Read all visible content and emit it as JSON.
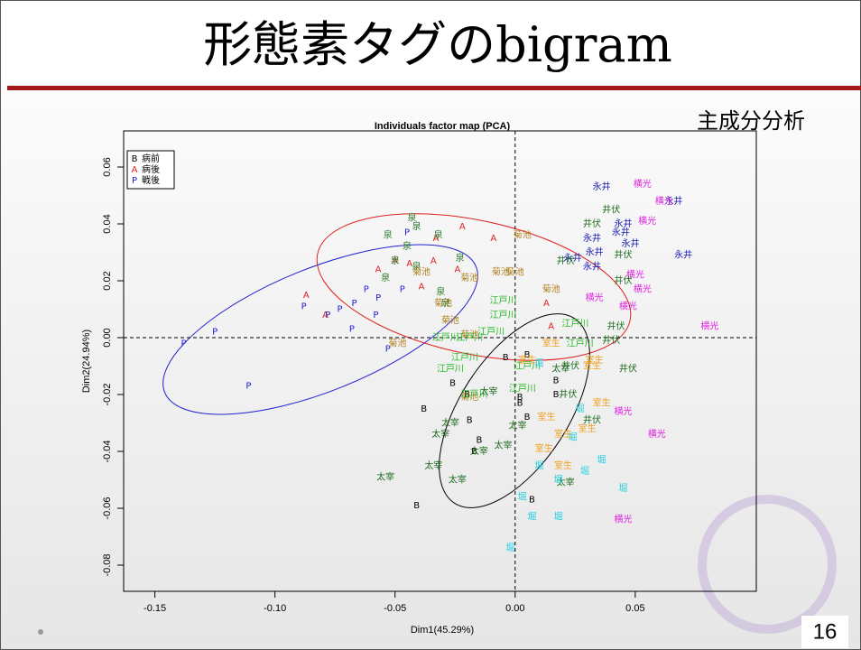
{
  "slide": {
    "title": "形態素タグのbigram",
    "subtitle": "主成分分析",
    "page_number": "16"
  },
  "chart_data": {
    "type": "scatter",
    "title": "Individuals factor map (PCA)",
    "x_label": "Dim1(45.29%)",
    "y_label": "Dim2(24.94%)",
    "xlim": [
      -0.163,
      0.1004
    ],
    "ylim": [
      -0.0892,
      0.0727
    ],
    "xticks": [
      -0.15,
      {
        "value": -0.1,
        "label": "-0.10"
      },
      -0.05,
      {
        "value": 0,
        "label": "0.00"
      },
      0.05
    ],
    "yticks": [
      -0.08,
      -0.06,
      -0.04,
      -0.02,
      {
        "value": 0,
        "label": "0.00"
      },
      0.02,
      0.04,
      0.06
    ],
    "legend": "top-left",
    "series": [
      {
        "name": "病前",
        "marker": "B",
        "color": "#000000",
        "x": [
          -0.038,
          -0.041,
          -0.02,
          -0.026,
          -0.019,
          -0.015,
          -0.017,
          0.002,
          0.005,
          0.007,
          0.017,
          0.017,
          0.005,
          -0.004,
          0.002
        ],
        "y": [
          -0.025,
          -0.059,
          -0.02,
          -0.016,
          -0.029,
          -0.036,
          -0.04,
          -0.023,
          -0.028,
          -0.057,
          -0.015,
          -0.02,
          -0.006,
          -0.007,
          -0.021
        ]
      },
      {
        "name": "病後",
        "marker": "A",
        "color": "#e02020",
        "x": [
          -0.087,
          -0.079,
          -0.057,
          -0.05,
          -0.039,
          -0.022,
          -0.033,
          -0.009,
          -0.044,
          -0.034,
          -0.024,
          0.013,
          0.015
        ],
        "y": [
          0.015,
          0.008,
          0.024,
          0.027,
          0.018,
          0.039,
          0.035,
          0.035,
          0.026,
          0.027,
          0.024,
          0.012,
          0.004
        ]
      },
      {
        "name": "戦後",
        "marker": "P",
        "color": "#2020d0",
        "x": [
          -0.138,
          -0.125,
          -0.111,
          -0.088,
          -0.078,
          -0.073,
          -0.067,
          -0.062,
          -0.057,
          -0.047,
          -0.058,
          -0.068,
          -0.053,
          -0.045
        ],
        "y": [
          -0.002,
          0.002,
          -0.017,
          0.011,
          0.008,
          0.01,
          0.012,
          0.017,
          0.014,
          0.017,
          0.008,
          0.003,
          -0.004,
          0.037
        ]
      },
      {
        "name": "永井",
        "color": "#1c1cb8",
        "x": [
          0.036,
          0.066,
          0.045,
          0.032,
          0.044,
          0.048,
          0.07,
          0.033,
          0.024,
          0.032
        ],
        "y": [
          0.053,
          0.048,
          0.04,
          0.035,
          0.037,
          0.033,
          0.029,
          0.03,
          0.028,
          0.025
        ]
      },
      {
        "name": "横光",
        "color": "#e020e0",
        "x": [
          0.053,
          0.062,
          0.055,
          0.05,
          0.053,
          0.033,
          0.047,
          0.081,
          0.045,
          0.059,
          0.045
        ],
        "y": [
          0.054,
          0.048,
          0.041,
          0.022,
          0.017,
          0.014,
          0.011,
          0.004,
          -0.026,
          -0.034,
          -0.064
        ]
      },
      {
        "name": "井伏",
        "color": "#1f6e1f",
        "x": [
          0.04,
          0.032,
          0.045,
          0.021,
          0.045,
          0.042,
          0.04,
          0.023,
          0.047,
          0.022,
          0.032
        ],
        "y": [
          0.045,
          0.04,
          0.029,
          0.027,
          0.02,
          0.004,
          -0.001,
          -0.01,
          -0.011,
          -0.02,
          -0.029
        ]
      },
      {
        "name": "泉",
        "color": "#2a7a2a",
        "x": [
          -0.043,
          -0.041,
          -0.053,
          -0.045,
          -0.032,
          -0.05,
          -0.023,
          -0.031,
          -0.029,
          -0.054,
          -0.041
        ],
        "y": [
          0.042,
          0.039,
          0.036,
          0.032,
          0.036,
          0.027,
          0.028,
          0.016,
          0.012,
          0.021,
          0.025
        ]
      },
      {
        "name": "菊池",
        "color": "#b08020",
        "x": [
          0.003,
          -0.039,
          -0.019,
          -0.006,
          0.0,
          -0.03,
          -0.027,
          0.015,
          -0.019,
          -0.049,
          -0.019
        ],
        "y": [
          0.036,
          0.023,
          0.021,
          0.023,
          0.023,
          0.012,
          0.006,
          0.017,
          0.001,
          -0.002,
          -0.021
        ]
      },
      {
        "name": "江戸川",
        "color": "#22b822",
        "x": [
          -0.005,
          -0.005,
          -0.01,
          -0.019,
          -0.029,
          -0.021,
          0.005,
          -0.027,
          0.003,
          -0.017,
          0.025,
          0.027
        ],
        "y": [
          0.013,
          0.008,
          0.002,
          0.0,
          0.0,
          -0.007,
          -0.01,
          -0.011,
          -0.018,
          -0.02,
          0.005,
          -0.002
        ]
      },
      {
        "name": "太宰",
        "color": "#1a6a1a",
        "x": [
          -0.027,
          -0.031,
          -0.034,
          -0.005,
          -0.024,
          -0.054,
          -0.011,
          -0.015,
          0.001,
          0.019,
          0.021
        ],
        "y": [
          -0.03,
          -0.034,
          -0.045,
          -0.038,
          -0.05,
          -0.049,
          -0.019,
          -0.04,
          -0.031,
          -0.011,
          -0.051
        ]
      },
      {
        "name": "室生",
        "color": "#f0a020",
        "x": [
          0.005,
          0.015,
          0.032,
          0.036,
          0.013,
          0.02,
          0.012,
          0.02,
          0.03,
          0.033
        ],
        "y": [
          -0.008,
          -0.002,
          -0.01,
          -0.023,
          -0.028,
          -0.034,
          -0.039,
          -0.045,
          -0.032,
          -0.008
        ]
      },
      {
        "name": "堀",
        "color": "#22d0e0",
        "x": [
          0.01,
          0.027,
          0.024,
          0.01,
          0.018,
          0.029,
          0.036,
          0.045,
          0.003,
          0.007,
          0.018,
          -0.002
        ],
        "y": [
          -0.009,
          -0.025,
          -0.035,
          -0.045,
          -0.05,
          -0.047,
          -0.043,
          -0.053,
          -0.056,
          -0.063,
          -0.063,
          -0.074
        ]
      }
    ]
  }
}
